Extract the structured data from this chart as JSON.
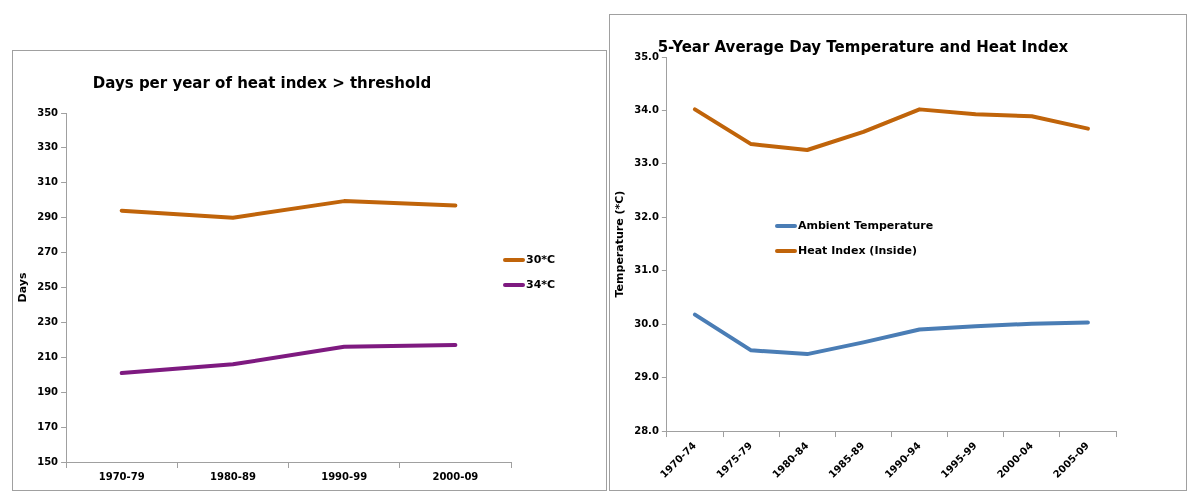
{
  "chart_data": [
    {
      "type": "line",
      "title": "Days per year of heat index > threshold",
      "ylabel": "Days",
      "categories": [
        "1970-79",
        "1980-89",
        "1990-99",
        "2000-09"
      ],
      "series": [
        {
          "name": "30*C",
          "color": "#c0640a",
          "values": [
            294,
            290,
            299.5,
            297
          ]
        },
        {
          "name": "34*C",
          "color": "#7e1a80",
          "values": [
            201,
            206,
            216,
            217
          ]
        }
      ],
      "ylim": [
        150,
        350
      ],
      "yticks": [
        150,
        170,
        190,
        210,
        230,
        250,
        270,
        290,
        310,
        330,
        350
      ],
      "grid": false,
      "legend": "right",
      "marker": "none",
      "line_style": "solid"
    },
    {
      "type": "line",
      "title": "5-Year Average Day Temperature and Heat Index",
      "ylabel": "Temperature (*C)",
      "categories": [
        "1970-74",
        "1975-79",
        "1980-84",
        "1985-89",
        "1990-94",
        "1995-99",
        "2000-04",
        "2005-09"
      ],
      "series": [
        {
          "name": "Ambient Temperature",
          "color": "#4a7db5",
          "values": [
            30.18,
            29.51,
            29.44,
            29.66,
            29.9,
            29.96,
            30.01,
            30.03
          ]
        },
        {
          "name": "Heat Index (Inside)",
          "color": "#c0640a",
          "values": [
            34.02,
            33.37,
            33.26,
            33.6,
            34.02,
            33.93,
            33.89,
            33.66
          ]
        }
      ],
      "ylim": [
        28,
        35
      ],
      "yticks": [
        {
          "value": 28,
          "label": "28.0"
        },
        {
          "value": 29,
          "label": "29.0"
        },
        {
          "value": 30,
          "label": "30.0"
        },
        {
          "value": 31,
          "label": "31.0"
        },
        {
          "value": 32,
          "label": "32.0"
        },
        {
          "value": 33,
          "label": "33.0"
        },
        {
          "value": 34,
          "label": "34.0"
        },
        {
          "value": 35,
          "label": "35.0"
        }
      ],
      "grid": false,
      "legend": "center",
      "marker": "none",
      "line_style": "solid"
    }
  ]
}
